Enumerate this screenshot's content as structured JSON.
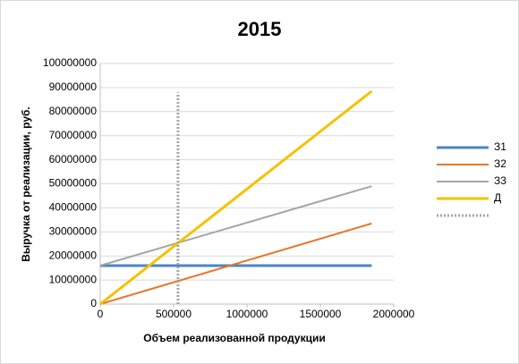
{
  "chart_data": {
    "type": "line",
    "title": "2015",
    "x_label": "Объем реализованной продукции",
    "y_label": "Выручка от реализации, руб.",
    "xlim": [
      0,
      2000000
    ],
    "xticks": [
      0,
      500000,
      1000000,
      1500000,
      2000000
    ],
    "ylim": [
      0,
      100000000
    ],
    "yticks": [
      0,
      10000000,
      20000000,
      30000000,
      40000000,
      50000000,
      60000000,
      70000000,
      80000000,
      90000000,
      100000000
    ],
    "grid": true,
    "legend": "right",
    "series": [
      {
        "name": "З1",
        "color": "#4a86c5",
        "width": 3,
        "x": [
          0,
          1850000
        ],
        "values": [
          16000000,
          16000000
        ]
      },
      {
        "name": "З2",
        "color": "#e8762d",
        "width": 2,
        "x": [
          0,
          1850000
        ],
        "values": [
          0,
          33500000
        ]
      },
      {
        "name": "З3",
        "color": "#a5a5a5",
        "width": 2,
        "x": [
          0,
          1850000
        ],
        "values": [
          16000000,
          49000000
        ]
      },
      {
        "name": "Д",
        "color": "#f5c200",
        "width": 3,
        "x": [
          0,
          1850000
        ],
        "values": [
          0,
          88500000
        ]
      },
      {
        "color": "#a5a5a5",
        "width": 3,
        "dashed": true,
        "x": [
          530000,
          530000
        ],
        "values": [
          0,
          88000000
        ]
      }
    ]
  }
}
